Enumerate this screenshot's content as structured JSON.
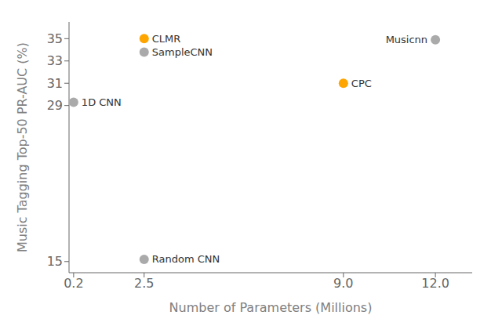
{
  "chart_data": {
    "type": "scatter",
    "xlabel": "Number of Parameters (Millions)",
    "ylabel": "Music Tagging Top-50 PR-AUC (%)",
    "x": [
      2.5,
      9.0,
      2.5,
      0.2,
      12.0,
      2.5
    ],
    "values": [
      35.0,
      31.0,
      33.8,
      29.3,
      34.9,
      15.2
    ],
    "labels": [
      "CLMR",
      "CPC",
      "SampleCNN",
      "1D CNN",
      "Musicnn",
      "Random CNN"
    ],
    "colors": [
      "#FFA500",
      "#FFA500",
      "#aaaaaa",
      "#aaaaaa",
      "#aaaaaa",
      "#aaaaaa"
    ],
    "xlim": [
      0.05,
      13.2
    ],
    "ylim": [
      14.0,
      36.5
    ],
    "xticks": [
      0.2,
      2.5,
      {
        "value": 9,
        "label": "9.0"
      },
      {
        "value": 12,
        "label": "12.0"
      }
    ],
    "yticks": [
      15,
      29,
      31,
      33,
      35
    ],
    "grid": false
  }
}
